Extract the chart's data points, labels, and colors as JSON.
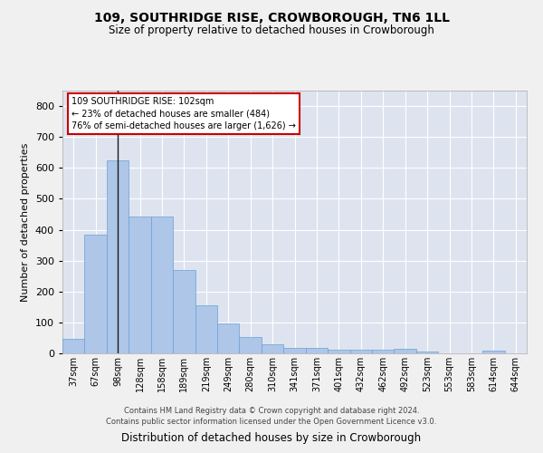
{
  "title": "109, SOUTHRIDGE RISE, CROWBOROUGH, TN6 1LL",
  "subtitle": "Size of property relative to detached houses in Crowborough",
  "xlabel": "Distribution of detached houses by size in Crowborough",
  "ylabel": "Number of detached properties",
  "annotation_text_lines": [
    "109 SOUTHRIDGE RISE: 102sqm",
    "← 23% of detached houses are smaller (484)",
    "76% of semi-detached houses are larger (1,626) →"
  ],
  "categories": [
    "37sqm",
    "67sqm",
    "98sqm",
    "128sqm",
    "158sqm",
    "189sqm",
    "219sqm",
    "249sqm",
    "280sqm",
    "310sqm",
    "341sqm",
    "371sqm",
    "401sqm",
    "432sqm",
    "462sqm",
    "492sqm",
    "523sqm",
    "553sqm",
    "583sqm",
    "614sqm",
    "644sqm"
  ],
  "values": [
    47,
    385,
    625,
    443,
    443,
    270,
    155,
    98,
    52,
    28,
    17,
    17,
    12,
    12,
    12,
    14,
    7,
    0,
    0,
    8,
    0
  ],
  "bar_color": "#aec6e8",
  "bar_edge_color": "#6a9fd8",
  "vline_color": "#1a1a1a",
  "vline_x_index": 2,
  "annotation_box_facecolor": "#ffffff",
  "annotation_box_edgecolor": "#cc0000",
  "plot_background_color": "#dde4ef",
  "fig_background_color": "#f0f0f0",
  "grid_color": "#ffffff",
  "ylim": [
    0,
    850
  ],
  "yticks": [
    0,
    100,
    200,
    300,
    400,
    500,
    600,
    700,
    800
  ],
  "footer_line1": "Contains HM Land Registry data © Crown copyright and database right 2024.",
  "footer_line2": "Contains public sector information licensed under the Open Government Licence v3.0."
}
